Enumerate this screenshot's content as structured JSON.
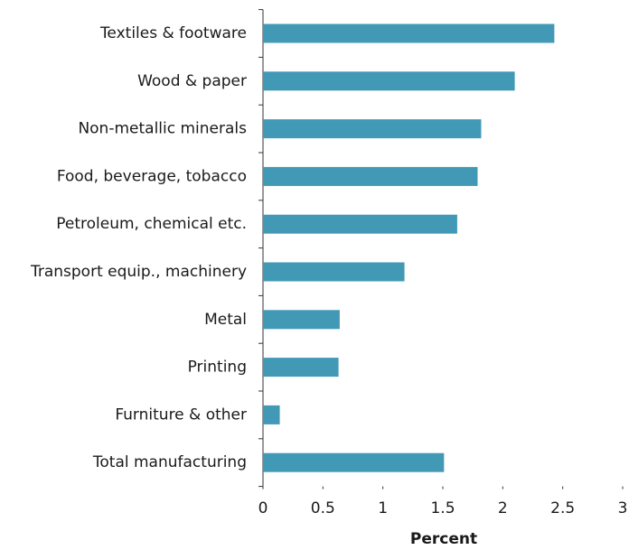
{
  "chart_data": {
    "type": "barh",
    "categories": [
      "Textiles & footware",
      "Wood & paper",
      "Non-metallic minerals",
      "Food, beverage, tobacco",
      "Petroleum, chemical etc.",
      "Transport equip., machinery",
      "Metal",
      "Printing",
      "Furniture & other",
      "Total manufacturing"
    ],
    "values": [
      2.43,
      2.1,
      1.82,
      1.79,
      1.62,
      1.18,
      0.64,
      0.63,
      0.14,
      1.51
    ],
    "color": "#4299b6",
    "xlabel": "Percent",
    "xlim": [
      0,
      3
    ],
    "xticks": [
      0,
      0.5,
      1,
      1.5,
      2,
      2.5,
      3
    ],
    "grid": false
  }
}
